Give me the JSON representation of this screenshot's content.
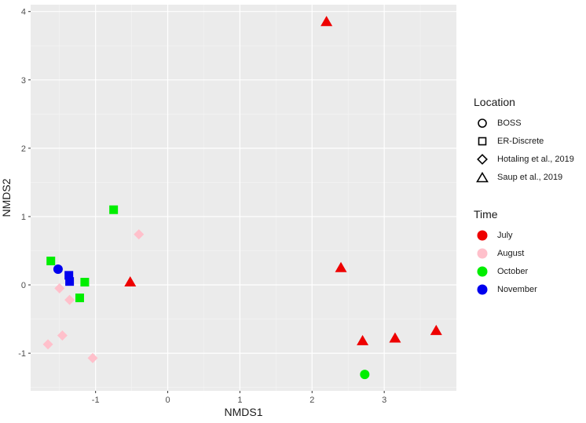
{
  "chart_data": {
    "type": "scatter",
    "xlabel": "NMDS1",
    "ylabel": "NMDS2",
    "xlim": [
      -1.9,
      4.0
    ],
    "ylim": [
      -1.55,
      4.1
    ],
    "x_ticks": [
      -1,
      0,
      1,
      2,
      3
    ],
    "y_ticks": [
      -1,
      0,
      1,
      2,
      3,
      4
    ],
    "x_tick_labels": [
      "-1",
      "0",
      "1",
      "2",
      "3"
    ],
    "y_tick_labels": [
      "-1",
      "0",
      "1",
      "2",
      "3",
      "4"
    ],
    "grid": true,
    "legend_position": "right",
    "legends": [
      {
        "title": "Location",
        "entries": [
          {
            "label": "BOSS",
            "shape": "circle"
          },
          {
            "label": "ER-Discrete",
            "shape": "square"
          },
          {
            "label": "Hotaling et al., 2019",
            "shape": "diamond"
          },
          {
            "label": "Saup et al., 2019",
            "shape": "triangle"
          }
        ]
      },
      {
        "title": "Time",
        "entries": [
          {
            "label": "July",
            "color": "#ee0000"
          },
          {
            "label": "August",
            "color": "#ffc0cb"
          },
          {
            "label": "October",
            "color": "#00ee00"
          },
          {
            "label": "November",
            "color": "#0000ee"
          }
        ]
      }
    ],
    "points": [
      {
        "x": 2.2,
        "y": 3.85,
        "location": "Saup et al., 2019",
        "time": "July"
      },
      {
        "x": 2.4,
        "y": 0.25,
        "location": "Saup et al., 2019",
        "time": "July"
      },
      {
        "x": -0.52,
        "y": 0.04,
        "location": "Saup et al., 2019",
        "time": "July"
      },
      {
        "x": 2.7,
        "y": -0.82,
        "location": "Saup et al., 2019",
        "time": "July"
      },
      {
        "x": 3.15,
        "y": -0.78,
        "location": "Saup et al., 2019",
        "time": "July"
      },
      {
        "x": 3.72,
        "y": -0.67,
        "location": "Saup et al., 2019",
        "time": "July"
      },
      {
        "x": 2.73,
        "y": -1.31,
        "location": "BOSS",
        "time": "October"
      },
      {
        "x": -1.52,
        "y": 0.23,
        "location": "BOSS",
        "time": "November"
      },
      {
        "x": -0.75,
        "y": 1.1,
        "location": "ER-Discrete",
        "time": "October"
      },
      {
        "x": -1.62,
        "y": 0.35,
        "location": "ER-Discrete",
        "time": "October"
      },
      {
        "x": -1.15,
        "y": 0.04,
        "location": "ER-Discrete",
        "time": "October"
      },
      {
        "x": -1.22,
        "y": -0.19,
        "location": "ER-Discrete",
        "time": "October"
      },
      {
        "x": -1.37,
        "y": 0.14,
        "location": "ER-Discrete",
        "time": "November"
      },
      {
        "x": -1.36,
        "y": 0.05,
        "location": "ER-Discrete",
        "time": "November"
      },
      {
        "x": -0.4,
        "y": 0.74,
        "location": "Hotaling et al., 2019",
        "time": "August"
      },
      {
        "x": -1.5,
        "y": -0.05,
        "location": "Hotaling et al., 2019",
        "time": "August"
      },
      {
        "x": -1.36,
        "y": -0.22,
        "location": "Hotaling et al., 2019",
        "time": "August"
      },
      {
        "x": -1.46,
        "y": -0.74,
        "location": "Hotaling et al., 2019",
        "time": "August"
      },
      {
        "x": -1.66,
        "y": -0.87,
        "location": "Hotaling et al., 2019",
        "time": "August"
      },
      {
        "x": -1.04,
        "y": -1.07,
        "location": "Hotaling et al., 2019",
        "time": "August"
      }
    ]
  }
}
